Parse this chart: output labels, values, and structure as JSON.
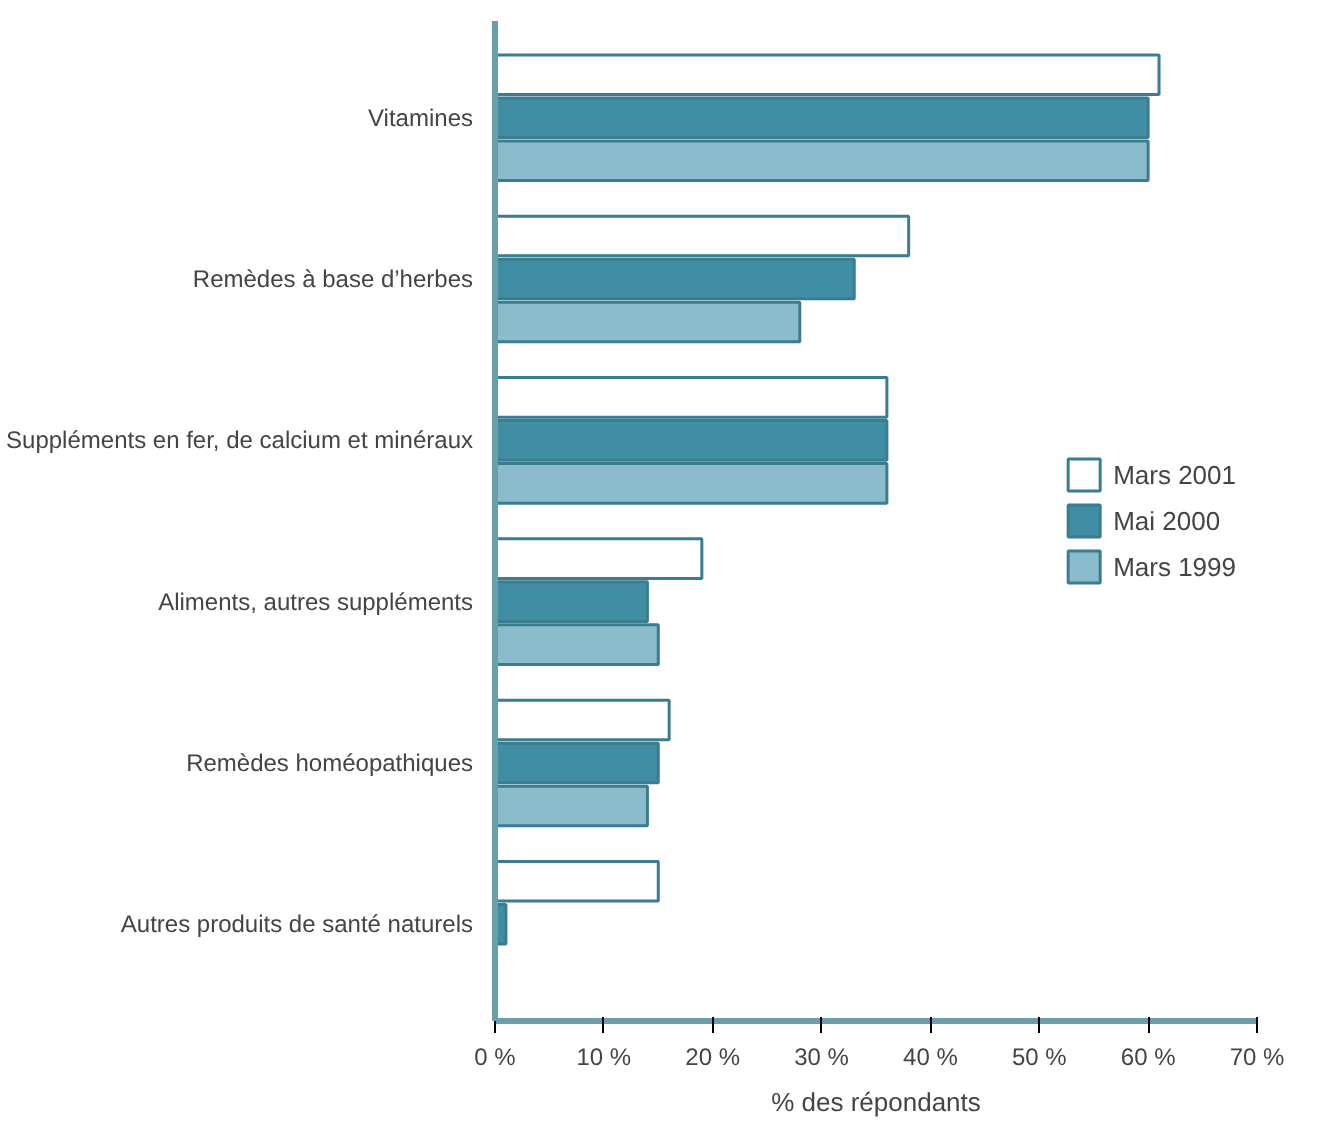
{
  "chart_data": {
    "type": "bar",
    "orientation": "horizontal",
    "xlabel": "% des répondants",
    "categories": [
      "Vitamines",
      "Remèdes à base d’herbes",
      "Suppléments en fer, de calcium et minéraux",
      "Aliments, autres suppléments",
      "Remèdes homéopathiques",
      "Autres produits de santé naturels"
    ],
    "series": [
      {
        "name": "Mars 2001",
        "color": "#ffffff",
        "values": [
          61,
          38,
          36,
          19,
          16,
          15
        ]
      },
      {
        "name": "Mai 2000",
        "color": "#3f8ea3",
        "values": [
          60,
          33,
          36,
          14,
          15,
          1
        ]
      },
      {
        "name": "Mars 1999",
        "color": "#8bbccb",
        "values": [
          60,
          28,
          36,
          15,
          14,
          null
        ]
      }
    ],
    "xlim": [
      0,
      70
    ],
    "xticks": [
      {
        "value": 0,
        "label": "0 %"
      },
      {
        "value": 10,
        "label": "10 %"
      },
      {
        "value": 20,
        "label": "20 %"
      },
      {
        "value": 30,
        "label": "30 %"
      },
      {
        "value": 40,
        "label": "40 %"
      },
      {
        "value": 50,
        "label": "50 %"
      },
      {
        "value": 60,
        "label": "60 %"
      },
      {
        "value": 70,
        "label": "70 %"
      }
    ],
    "grid": false,
    "legend": "right"
  }
}
